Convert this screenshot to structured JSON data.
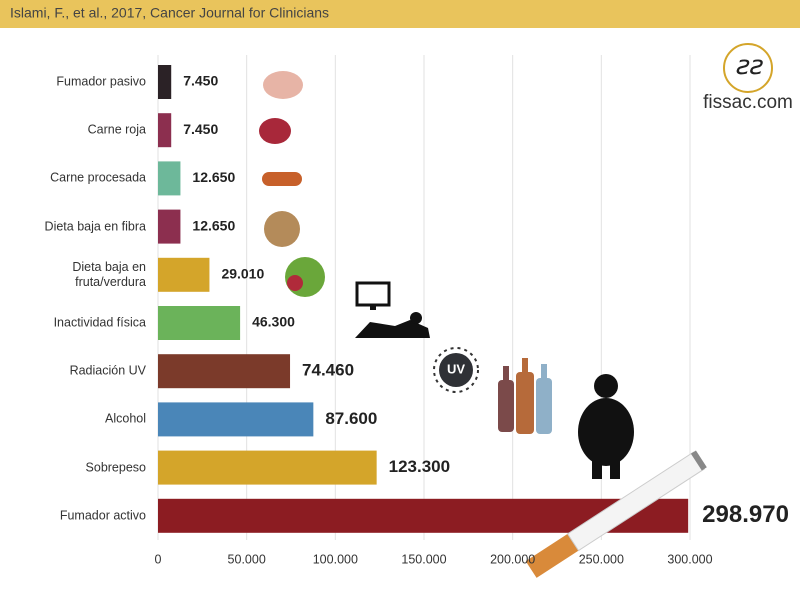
{
  "source": "Islami, F., et al., 2017, Cancer Journal for Clinicians",
  "logo": "fissac.com",
  "chart_data": {
    "type": "hbar",
    "categories": [
      "Fumador pasivo",
      "Carne roja",
      "Carne procesada",
      "Dieta baja en fibra",
      "Dieta baja en fruta/verdura",
      "Inactividad física",
      "Radiación UV",
      "Alcohol",
      "Sobrepeso",
      "Fumador activo"
    ],
    "values": [
      7450,
      7450,
      12650,
      12650,
      29010,
      46300,
      74460,
      87600,
      123300,
      298970
    ],
    "value_labels": [
      "7.450",
      "7.450",
      "12.650",
      "12.650",
      "29.010",
      "46.300",
      "74.460",
      "87.600",
      "123.300",
      "298.970"
    ],
    "colors": [
      "#2b2226",
      "#8c2f4f",
      "#6db89a",
      "#8c2f4f",
      "#d4a52a",
      "#6bb35a",
      "#7b3a2a",
      "#4a86b8",
      "#d4a52a",
      "#8c1c22"
    ],
    "xlim": [
      0,
      300000
    ],
    "xticks": [
      0,
      {
        "value": 50000,
        "label": "50.000"
      },
      {
        "value": 100000,
        "label": "100.000"
      },
      {
        "value": 150000,
        "label": "150.000"
      },
      {
        "value": 200000,
        "label": "200.000"
      },
      {
        "value": 250000,
        "label": "250.000"
      },
      {
        "value": 300000,
        "label": "300.000"
      }
    ],
    "grid": true,
    "uv_icon_label": "UV"
  }
}
